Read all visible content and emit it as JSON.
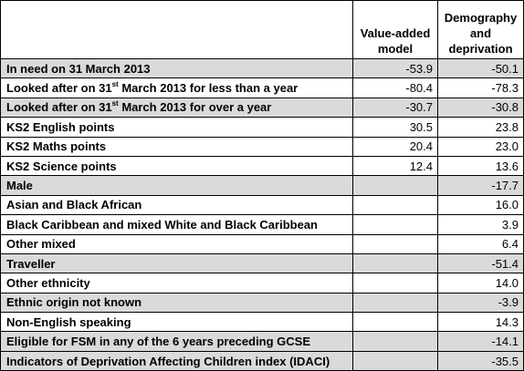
{
  "header": {
    "col1": "Value-added model",
    "col2": "Demography and deprivation"
  },
  "rows": [
    {
      "pre": "In need on 31 March 2013",
      "sup": "",
      "post": "",
      "v1": "-53.9",
      "v2": "-50.1",
      "shade": true
    },
    {
      "pre": "Looked after on 31",
      "sup": "st",
      "post": " March 2013 for less than a year",
      "v1": "-80.4",
      "v2": "-78.3",
      "shade": false
    },
    {
      "pre": "Looked after on 31",
      "sup": "st",
      "post": " March 2013 for over a year",
      "v1": "-30.7",
      "v2": "-30.8",
      "shade": true
    },
    {
      "pre": "KS2 English points",
      "sup": "",
      "post": "",
      "v1": "30.5",
      "v2": "23.8",
      "shade": false
    },
    {
      "pre": "KS2 Maths points",
      "sup": "",
      "post": "",
      "v1": "20.4",
      "v2": "23.0",
      "shade": false
    },
    {
      "pre": "KS2 Science points",
      "sup": "",
      "post": "",
      "v1": "12.4",
      "v2": "13.6",
      "shade": false
    },
    {
      "pre": "Male",
      "sup": "",
      "post": "",
      "v1": "",
      "v2": "-17.7",
      "shade": true
    },
    {
      "pre": "Asian and Black African",
      "sup": "",
      "post": "",
      "v1": "",
      "v2": "16.0",
      "shade": false
    },
    {
      "pre": "Black Caribbean and mixed White and Black Caribbean",
      "sup": "",
      "post": "",
      "v1": "",
      "v2": "3.9",
      "shade": false
    },
    {
      "pre": "Other mixed",
      "sup": "",
      "post": "",
      "v1": "",
      "v2": "6.4",
      "shade": false
    },
    {
      "pre": "Traveller",
      "sup": "",
      "post": "",
      "v1": "",
      "v2": "-51.4",
      "shade": true
    },
    {
      "pre": "Other ethnicity",
      "sup": "",
      "post": "",
      "v1": "",
      "v2": "14.0",
      "shade": false
    },
    {
      "pre": "Ethnic origin not known",
      "sup": "",
      "post": "",
      "v1": "",
      "v2": "-3.9",
      "shade": true
    },
    {
      "pre": "Non-English speaking",
      "sup": "",
      "post": "",
      "v1": "",
      "v2": "14.3",
      "shade": false
    },
    {
      "pre": "Eligible for FSM in any of the 6 years preceding GCSE",
      "sup": "",
      "post": "",
      "v1": "",
      "v2": "-14.1",
      "shade": true
    },
    {
      "pre": "Indicators of Deprivation Affecting Children index (IDACI)",
      "sup": "",
      "post": "",
      "v1": "",
      "v2": "-35.5",
      "shade": true
    }
  ]
}
